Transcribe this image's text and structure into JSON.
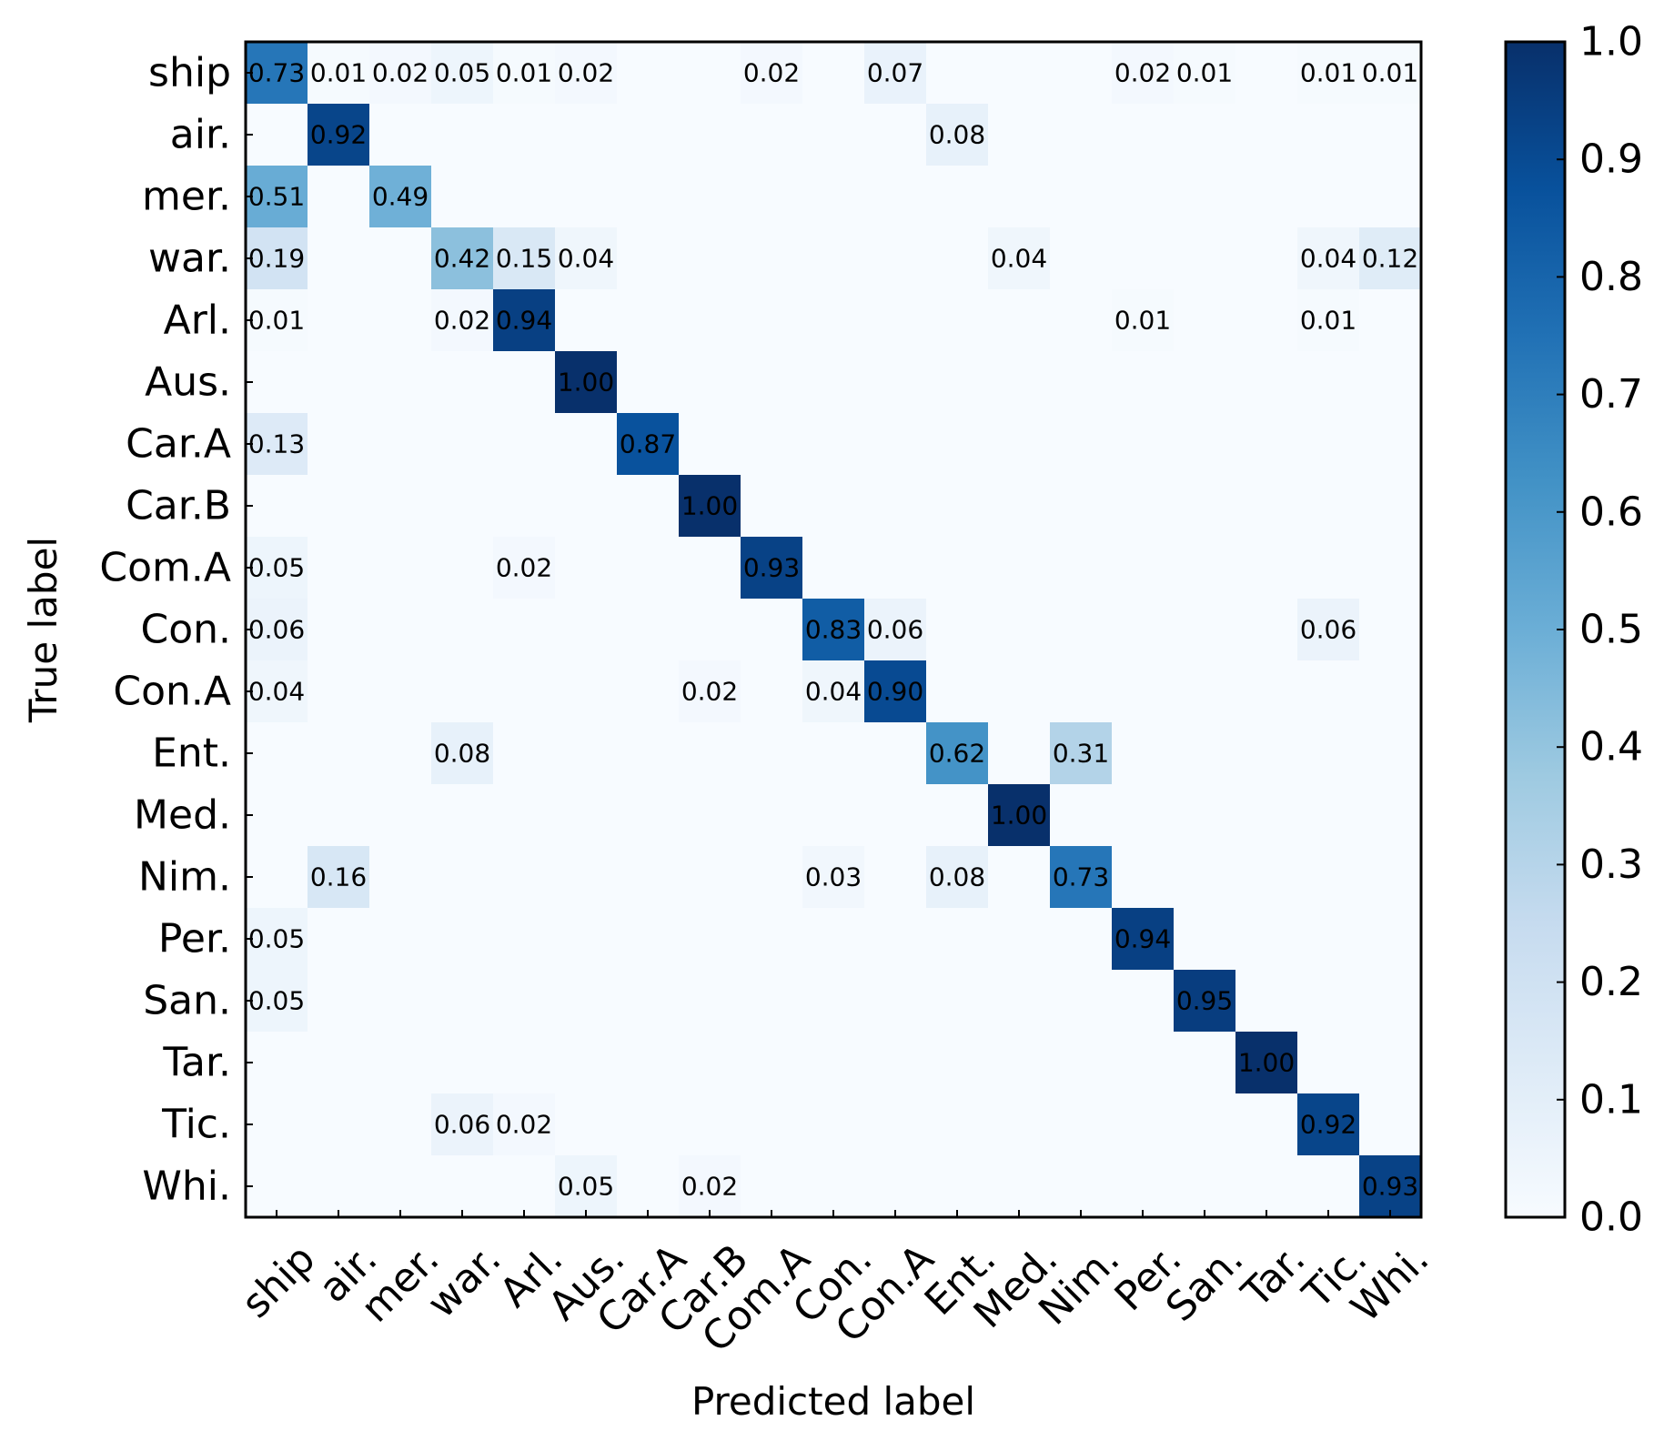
{
  "chart_data": {
    "type": "heatmap",
    "title": "",
    "xlabel": "Predicted label",
    "ylabel": "True label",
    "labels": [
      "ship",
      "air.",
      "mer.",
      "war.",
      "Arl.",
      "Aus.",
      "Car.A",
      "Car.B",
      "Com.A",
      "Con.",
      "Con.A",
      "Ent.",
      "Med.",
      "Nim.",
      "Per.",
      "San.",
      "Tar.",
      "Tic.",
      "Whi."
    ],
    "matrix": [
      [
        0.73,
        0.01,
        0.02,
        0.05,
        0.01,
        0.02,
        0,
        0,
        0.02,
        0,
        0.07,
        0,
        0,
        0,
        0.02,
        0.01,
        0,
        0.01,
        0.01
      ],
      [
        0,
        0.92,
        0,
        0,
        0,
        0,
        0,
        0,
        0,
        0,
        0,
        0.08,
        0,
        0,
        0,
        0,
        0,
        0,
        0
      ],
      [
        0.51,
        0,
        0.49,
        0,
        0,
        0,
        0,
        0,
        0,
        0,
        0,
        0,
        0,
        0,
        0,
        0,
        0,
        0,
        0
      ],
      [
        0.19,
        0,
        0,
        0.42,
        0.15,
        0.04,
        0,
        0,
        0,
        0,
        0,
        0,
        0.04,
        0,
        0,
        0,
        0,
        0.04,
        0.12
      ],
      [
        0.01,
        0,
        0,
        0.02,
        0.94,
        0,
        0,
        0,
        0,
        0,
        0,
        0,
        0,
        0,
        0.01,
        0,
        0,
        0.01,
        0
      ],
      [
        0,
        0,
        0,
        0,
        0,
        1.0,
        0,
        0,
        0,
        0,
        0,
        0,
        0,
        0,
        0,
        0,
        0,
        0,
        0
      ],
      [
        0.13,
        0,
        0,
        0,
        0,
        0,
        0.87,
        0,
        0,
        0,
        0,
        0,
        0,
        0,
        0,
        0,
        0,
        0,
        0
      ],
      [
        0,
        0,
        0,
        0,
        0,
        0,
        0,
        1.0,
        0,
        0,
        0,
        0,
        0,
        0,
        0,
        0,
        0,
        0,
        0
      ],
      [
        0.05,
        0,
        0,
        0,
        0.02,
        0,
        0,
        0,
        0.93,
        0,
        0,
        0,
        0,
        0,
        0,
        0,
        0,
        0,
        0
      ],
      [
        0.06,
        0,
        0,
        0,
        0,
        0,
        0,
        0,
        0,
        0.83,
        0.06,
        0,
        0,
        0,
        0,
        0,
        0,
        0.06,
        0
      ],
      [
        0.04,
        0,
        0,
        0,
        0,
        0,
        0,
        0.02,
        0,
        0.04,
        0.9,
        0,
        0,
        0,
        0,
        0,
        0,
        0,
        0
      ],
      [
        0,
        0,
        0,
        0.08,
        0,
        0,
        0,
        0,
        0,
        0,
        0,
        0.62,
        0,
        0.31,
        0,
        0,
        0,
        0,
        0
      ],
      [
        0,
        0,
        0,
        0,
        0,
        0,
        0,
        0,
        0,
        0,
        0,
        0,
        1.0,
        0,
        0,
        0,
        0,
        0,
        0
      ],
      [
        0,
        0.16,
        0,
        0,
        0,
        0,
        0,
        0,
        0,
        0.03,
        0,
        0.08,
        0,
        0.73,
        0,
        0,
        0,
        0,
        0
      ],
      [
        0.05,
        0,
        0,
        0,
        0,
        0,
        0,
        0,
        0,
        0,
        0,
        0,
        0,
        0,
        0.94,
        0,
        0,
        0,
        0
      ],
      [
        0.05,
        0,
        0,
        0,
        0,
        0,
        0,
        0,
        0,
        0,
        0,
        0,
        0,
        0,
        0,
        0.95,
        0,
        0,
        0
      ],
      [
        0,
        0,
        0,
        0,
        0,
        0,
        0,
        0,
        0,
        0,
        0,
        0,
        0,
        0,
        0,
        0,
        1.0,
        0,
        0
      ],
      [
        0,
        0,
        0,
        0.06,
        0.02,
        0,
        0,
        0,
        0,
        0,
        0,
        0,
        0,
        0,
        0,
        0,
        0,
        0.92,
        0
      ],
      [
        0,
        0,
        0,
        0,
        0,
        0.05,
        0,
        0.02,
        0,
        0,
        0,
        0,
        0,
        0,
        0,
        0,
        0,
        0,
        0.93
      ]
    ],
    "colormap": "Blues",
    "colorbar": {
      "range": [
        0.0,
        1.0
      ],
      "ticks": [
        "0.0",
        "0.1",
        "0.2",
        "0.3",
        "0.4",
        "0.5",
        "0.6",
        "0.7",
        "0.8",
        "0.9",
        "1.0"
      ]
    }
  }
}
